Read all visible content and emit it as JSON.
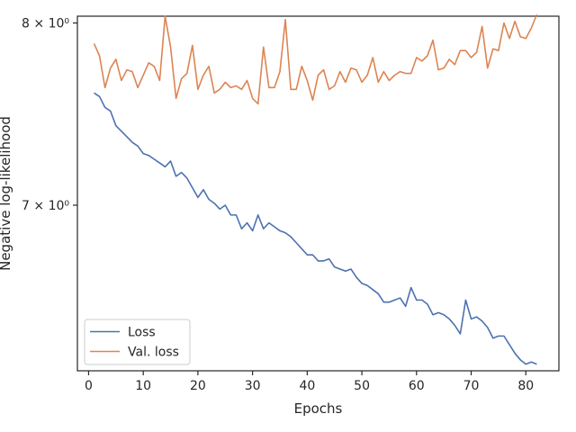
{
  "chart_data": {
    "type": "line",
    "title": "",
    "xlabel": "Epochs",
    "ylabel": "Negative log-likelihood",
    "yscale": "log",
    "xlim": [
      -2.05,
      86.05
    ],
    "ylim": [
      6.2,
      8.04
    ],
    "x_ticks": [
      0,
      10,
      20,
      30,
      40,
      50,
      60,
      70,
      80
    ],
    "y_ticks": [
      {
        "value": 7,
        "label": "7 × 10⁰"
      },
      {
        "value": 8,
        "label": "8 × 10⁰"
      }
    ],
    "grid": false,
    "legend_position": "lower-left",
    "x": [
      1,
      2,
      3,
      4,
      5,
      6,
      7,
      8,
      9,
      10,
      11,
      12,
      13,
      14,
      15,
      16,
      17,
      18,
      19,
      20,
      21,
      22,
      23,
      24,
      25,
      26,
      27,
      28,
      29,
      30,
      31,
      32,
      33,
      34,
      35,
      36,
      37,
      38,
      39,
      40,
      41,
      42,
      43,
      44,
      45,
      46,
      47,
      48,
      49,
      50,
      51,
      52,
      53,
      54,
      55,
      56,
      57,
      58,
      59,
      60,
      61,
      62,
      63,
      64,
      65,
      66,
      67,
      68,
      69,
      70,
      71,
      72,
      73,
      74,
      75,
      76,
      77,
      78,
      79,
      80,
      81,
      82
    ],
    "series": [
      {
        "name": "Loss",
        "color": "#4c72b0",
        "values": [
          7.6,
          7.58,
          7.52,
          7.5,
          7.42,
          7.39,
          7.36,
          7.33,
          7.31,
          7.27,
          7.26,
          7.24,
          7.22,
          7.2,
          7.23,
          7.15,
          7.17,
          7.14,
          7.09,
          7.04,
          7.08,
          7.03,
          7.01,
          6.98,
          7.0,
          6.95,
          6.95,
          6.88,
          6.91,
          6.87,
          6.95,
          6.88,
          6.91,
          6.89,
          6.87,
          6.86,
          6.84,
          6.81,
          6.78,
          6.75,
          6.75,
          6.72,
          6.72,
          6.73,
          6.69,
          6.68,
          6.67,
          6.68,
          6.64,
          6.61,
          6.6,
          6.58,
          6.56,
          6.52,
          6.52,
          6.53,
          6.54,
          6.5,
          6.59,
          6.53,
          6.53,
          6.51,
          6.46,
          6.47,
          6.46,
          6.44,
          6.41,
          6.37,
          6.53,
          6.44,
          6.45,
          6.43,
          6.4,
          6.35,
          6.36,
          6.36,
          6.32,
          6.28,
          6.25,
          6.23,
          6.24,
          6.23
        ]
      },
      {
        "name": "Val. loss",
        "color": "#dd8452",
        "values": [
          7.88,
          7.81,
          7.63,
          7.74,
          7.79,
          7.67,
          7.73,
          7.72,
          7.63,
          7.7,
          7.77,
          7.75,
          7.67,
          8.04,
          7.86,
          7.57,
          7.68,
          7.71,
          7.87,
          7.62,
          7.7,
          7.75,
          7.6,
          7.62,
          7.66,
          7.63,
          7.64,
          7.62,
          7.67,
          7.57,
          7.54,
          7.86,
          7.63,
          7.63,
          7.72,
          8.02,
          7.62,
          7.62,
          7.75,
          7.67,
          7.56,
          7.7,
          7.73,
          7.62,
          7.64,
          7.72,
          7.66,
          7.74,
          7.73,
          7.66,
          7.7,
          7.8,
          7.66,
          7.72,
          7.67,
          7.7,
          7.72,
          7.71,
          7.71,
          7.8,
          7.78,
          7.81,
          7.9,
          7.73,
          7.74,
          7.79,
          7.76,
          7.84,
          7.84,
          7.8,
          7.83,
          7.98,
          7.74,
          7.85,
          7.84,
          8.0,
          7.91,
          8.01,
          7.92,
          7.91,
          7.97,
          8.05
        ]
      }
    ]
  }
}
